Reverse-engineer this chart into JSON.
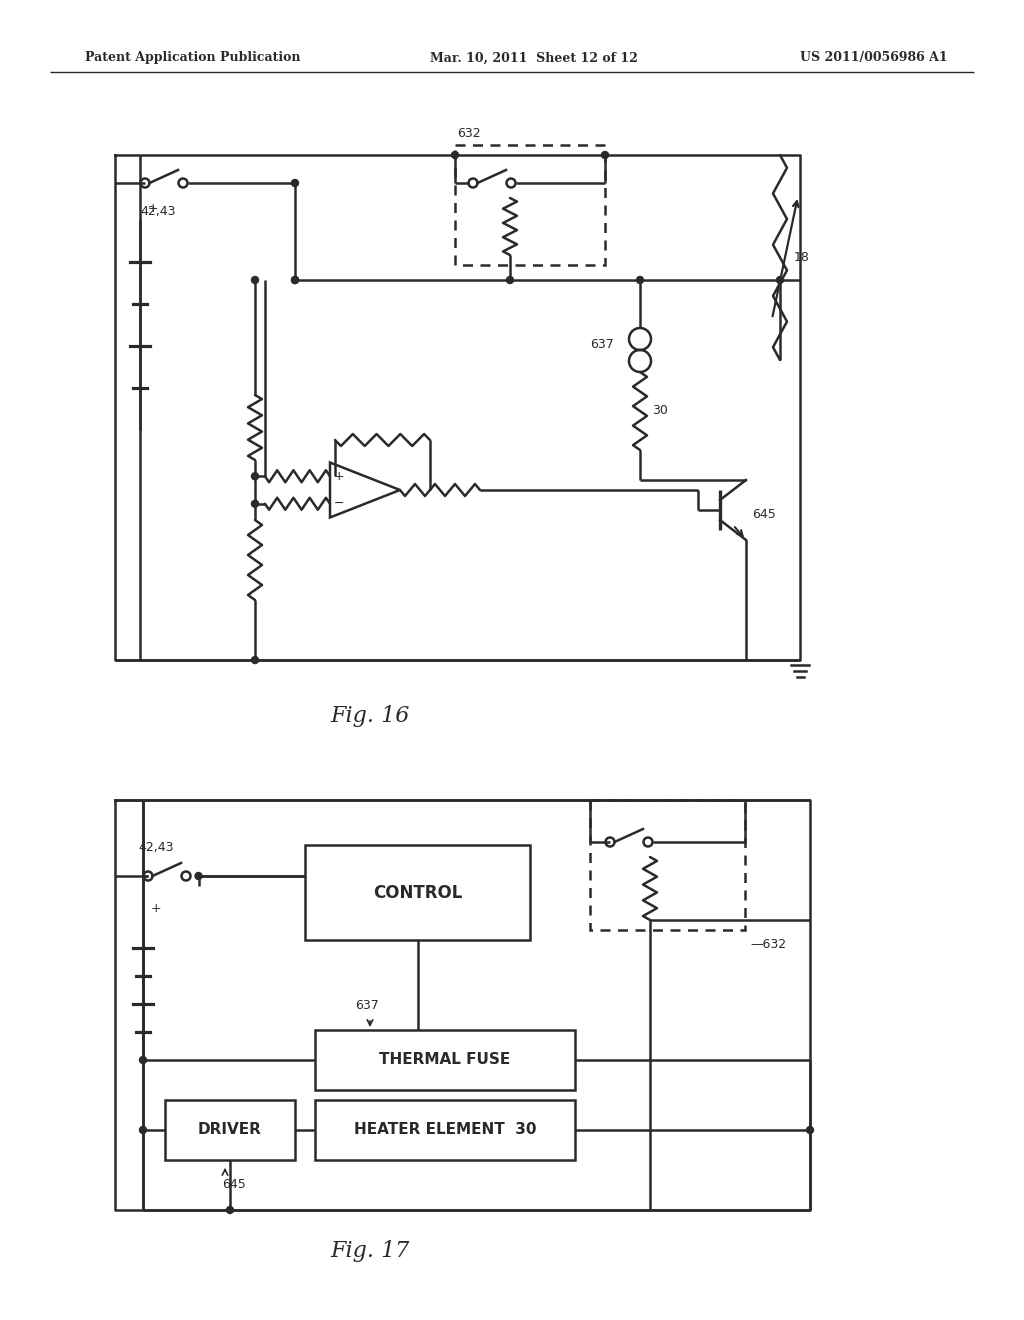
{
  "bg_color": "#ffffff",
  "line_color": "#2a2a2a",
  "line_width": 1.8,
  "header_left": "Patent Application Publication",
  "header_center": "Mar. 10, 2011  Sheet 12 of 12",
  "header_right": "US 2011/0056986 A1",
  "fig16_label": "Fig. 16",
  "fig17_label": "Fig. 17"
}
